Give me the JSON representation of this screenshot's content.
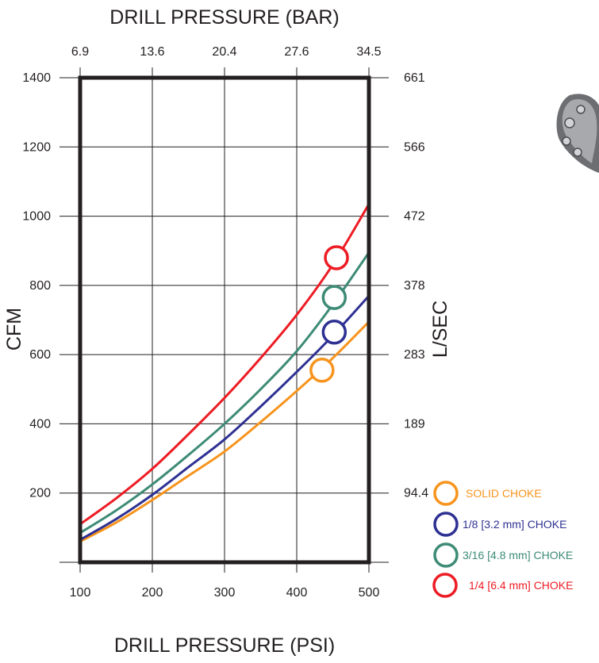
{
  "chart_data": {
    "type": "line",
    "title_top": "DRILL PRESSURE (BAR)",
    "xlabel": "DRILL PRESSURE (PSI)",
    "ylabel_left": "CFM",
    "ylabel_right": "L/SEC",
    "xlim": [
      100,
      500
    ],
    "ylim": [
      0,
      1400
    ],
    "x_ticks": [
      "100",
      "200",
      "300",
      "400",
      "500"
    ],
    "x_top_ticks": [
      "6.9",
      "13.6",
      "20.4",
      "27.6",
      "34.5"
    ],
    "y_ticks": [
      "200",
      "400",
      "600",
      "800",
      "1000",
      "1200",
      "1400"
    ],
    "y_right_ticks": [
      "94.4",
      "189",
      "283",
      "378",
      "472",
      "566",
      "661"
    ],
    "grid": true,
    "legend_position": "bottom-right",
    "series": [
      {
        "name": "SOLID CHOKE",
        "color": "#f7941d",
        "x": [
          100,
          150,
          200,
          250,
          300,
          350,
          400,
          450,
          500
        ],
        "y": [
          60,
          115,
          180,
          250,
          320,
          405,
          495,
          590,
          695
        ],
        "marker": {
          "x": 435,
          "y": 555
        }
      },
      {
        "name": "1/8 [3.2 mm] CHOKE",
        "color": "#2e3192",
        "x": [
          100,
          150,
          200,
          250,
          300,
          350,
          400,
          450,
          500
        ],
        "y": [
          65,
          125,
          195,
          275,
          355,
          450,
          550,
          655,
          770
        ],
        "marker": {
          "x": 452,
          "y": 665
        }
      },
      {
        "name": "3/16 [4.8 mm] CHOKE",
        "color": "#3d8b76",
        "x": [
          100,
          150,
          200,
          250,
          300,
          350,
          400,
          450,
          500
        ],
        "y": [
          85,
          150,
          225,
          310,
          400,
          500,
          610,
          745,
          895
        ],
        "marker": {
          "x": 452,
          "y": 765
        }
      },
      {
        "name": "1/4 [6.4 mm] CHOKE",
        "color": "#ed1c24",
        "x": [
          100,
          150,
          200,
          250,
          300,
          350,
          400,
          450,
          500
        ],
        "y": [
          110,
          185,
          270,
          370,
          475,
          590,
          715,
          860,
          1035
        ],
        "marker": {
          "x": 455,
          "y": 880
        }
      }
    ]
  },
  "image": {
    "name": "drill-bit-photo"
  }
}
